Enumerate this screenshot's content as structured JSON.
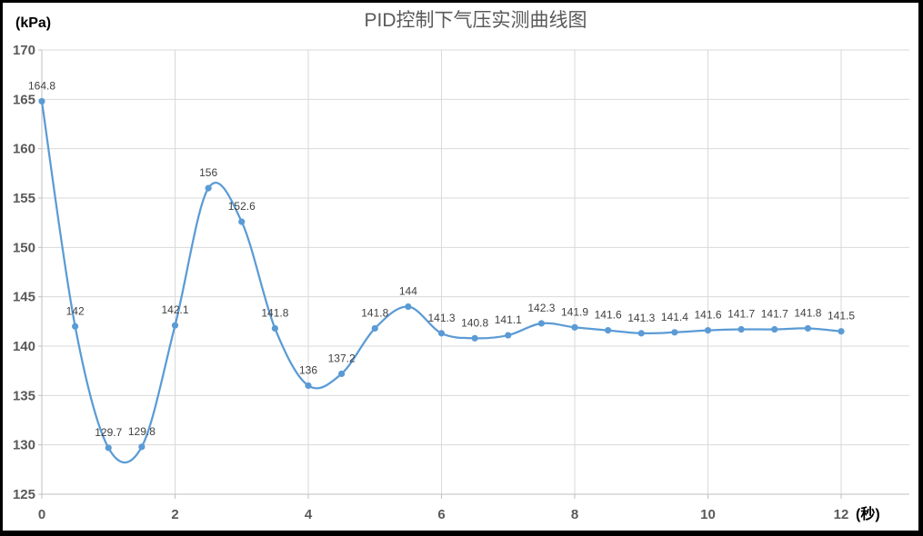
{
  "frame": {
    "background": "#FFFFFF",
    "border_color": "#000000"
  },
  "chart_data": {
    "type": "line",
    "title": "PID控制下气压实测曲线图",
    "ylabel": "(kPa)",
    "xlabel": "(秒)",
    "x": [
      0,
      0.5,
      1,
      1.5,
      2,
      2.5,
      3,
      3.5,
      4,
      4.5,
      5,
      5.5,
      6,
      6.5,
      7,
      7.5,
      8,
      8.5,
      9,
      9.5,
      10,
      10.5,
      11,
      11.5,
      12
    ],
    "values": [
      164.8,
      142,
      129.7,
      129.8,
      142.1,
      156,
      152.6,
      141.8,
      136,
      137.2,
      141.8,
      144,
      141.3,
      140.8,
      141.1,
      142.3,
      141.9,
      141.6,
      141.3,
      141.4,
      141.6,
      141.7,
      141.7,
      141.8,
      141.5
    ],
    "data_labels": [
      "164.8",
      "142",
      "129.7",
      "129.8",
      "142.1",
      "156",
      "152.6",
      "141.8",
      "136",
      "137.2",
      "141.8",
      "144",
      "141.3",
      "140.8",
      "141.1",
      "142.3",
      "141.9",
      "141.6",
      "141.3",
      "141.4",
      "141.6",
      "141.7",
      "141.7",
      "141.8",
      "141.5"
    ],
    "ylim": [
      125,
      170
    ],
    "ytick_step": 5,
    "yticks": [
      125,
      130,
      135,
      140,
      145,
      150,
      155,
      160,
      165,
      170
    ],
    "xticks": [
      0,
      2,
      4,
      6,
      8,
      10,
      12
    ],
    "grid": true,
    "smooth": true,
    "show_markers": true,
    "show_data_labels": true,
    "legend_position": "none",
    "colors": {
      "line": "#5B9BD5",
      "marker": "#5B9BD5",
      "gridline": "#D9D9D9",
      "axis_line": "#BFBFBF",
      "tick_text": "#595959",
      "data_label_text": "#404040",
      "title_text": "#595959",
      "unit_text": "#000000"
    }
  }
}
